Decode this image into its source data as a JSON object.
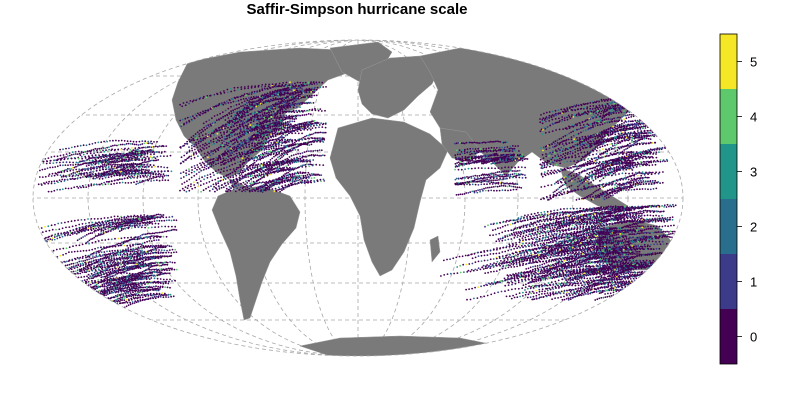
{
  "title": "Saffir-Simpson hurricane scale",
  "legend": {
    "type": "discrete-colorbar",
    "placement": "right",
    "range": [
      -0.5,
      5.5
    ],
    "ticks": [
      "0",
      "1",
      "2",
      "3",
      "4",
      "5"
    ],
    "colors": [
      "#440154",
      "#3b3b8a",
      "#2a6e8e",
      "#21958a",
      "#5ec96c",
      "#f5e626"
    ]
  },
  "map": {
    "projection": "mollweide",
    "land_color": "#7a7a7a",
    "ocean_color": "#ffffff",
    "graticule_style": "dashed-gray"
  }
}
